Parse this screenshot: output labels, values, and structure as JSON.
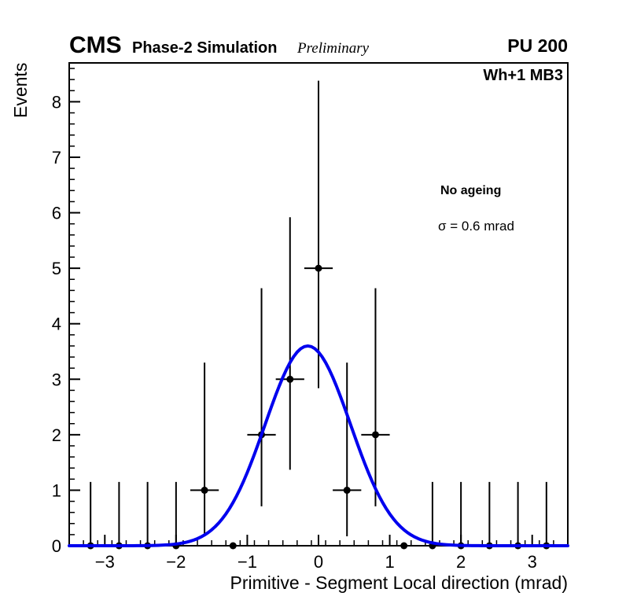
{
  "header": {
    "cms": "CMS",
    "subtitle": "Phase-2 Simulation",
    "preliminary": "Preliminary",
    "pu": "PU 200"
  },
  "annotations": {
    "chamber": "Wh+1 MB3",
    "ageing": "No ageing",
    "sigma": "σ = 0.6 mrad"
  },
  "chart_data": {
    "type": "scatter",
    "title": "",
    "xlabel": "Primitive - Segment Local direction (mrad)",
    "ylabel": "Events",
    "xlim": [
      -3.5,
      3.5
    ],
    "ylim": [
      0,
      8.7
    ],
    "x_major_ticks": [
      -3,
      -2,
      -1,
      0,
      1,
      2,
      3
    ],
    "y_major_ticks": [
      0,
      1,
      2,
      3,
      4,
      5,
      6,
      7,
      8
    ],
    "x_minor_step": 0.2,
    "y_minor_step": 0.2,
    "grid": false,
    "bin_half_width": 0.2,
    "marker_color": "#000000",
    "points": [
      {
        "x": -3.2,
        "y": 0,
        "err_up": 1.15,
        "err_down": 0
      },
      {
        "x": -2.8,
        "y": 0,
        "err_up": 1.15,
        "err_down": 0
      },
      {
        "x": -2.4,
        "y": 0,
        "err_up": 1.15,
        "err_down": 0
      },
      {
        "x": -2.0,
        "y": 0,
        "err_up": 1.15,
        "err_down": 0
      },
      {
        "x": -1.6,
        "y": 1,
        "err_up": 2.3,
        "err_down": 0.83
      },
      {
        "x": -1.2,
        "y": 0,
        "err_up": 0,
        "err_down": 0
      },
      {
        "x": -0.8,
        "y": 2,
        "err_up": 2.64,
        "err_down": 1.29
      },
      {
        "x": -0.4,
        "y": 3,
        "err_up": 2.92,
        "err_down": 1.63
      },
      {
        "x": 0.0,
        "y": 5,
        "err_up": 3.38,
        "err_down": 2.16
      },
      {
        "x": 0.4,
        "y": 1,
        "err_up": 2.3,
        "err_down": 0.83
      },
      {
        "x": 0.8,
        "y": 2,
        "err_up": 2.64,
        "err_down": 1.29
      },
      {
        "x": 1.2,
        "y": 0,
        "err_up": 0,
        "err_down": 0
      },
      {
        "x": 1.6,
        "y": 0,
        "err_up": 1.15,
        "err_down": 0
      },
      {
        "x": 2.0,
        "y": 0,
        "err_up": 1.15,
        "err_down": 0
      },
      {
        "x": 2.4,
        "y": 0,
        "err_up": 1.15,
        "err_down": 0
      },
      {
        "x": 2.8,
        "y": 0,
        "err_up": 1.15,
        "err_down": 0
      },
      {
        "x": 3.2,
        "y": 0,
        "err_up": 1.15,
        "err_down": 0
      }
    ],
    "fit": {
      "type": "gaussian",
      "amplitude": 3.6,
      "mean": -0.15,
      "sigma": 0.6,
      "color": "#0000ee",
      "width": 4
    }
  }
}
